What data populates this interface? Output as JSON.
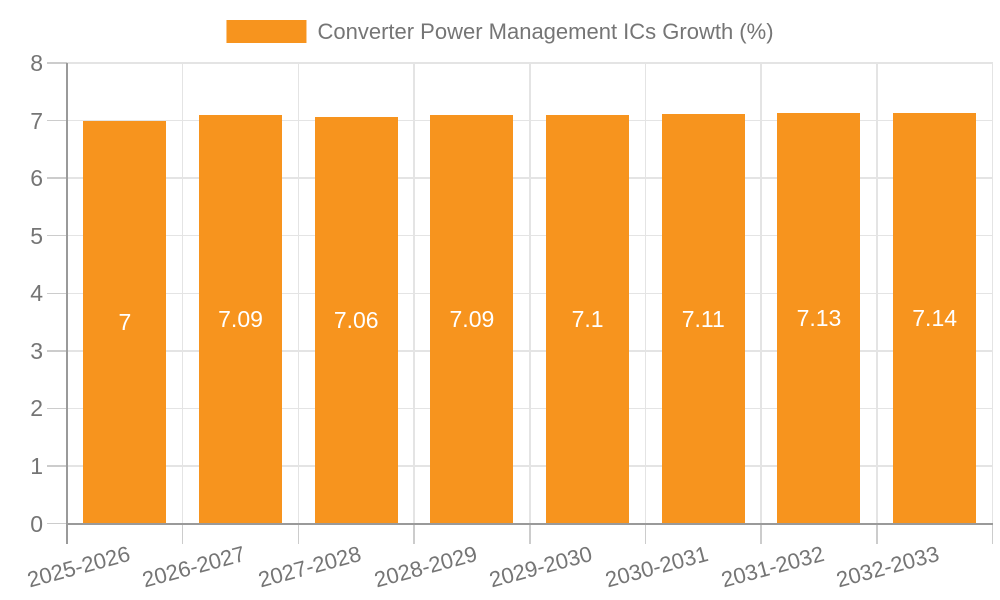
{
  "legend": {
    "label": "Converter Power Management ICs Growth (%)"
  },
  "chart_data": {
    "type": "bar",
    "title": "",
    "categories": [
      "2025-2026",
      "2026-2027",
      "2027-2028",
      "2028-2029",
      "2029-2030",
      "2030-2031",
      "2031-2032",
      "2032-2033"
    ],
    "values": [
      7,
      7.09,
      7.06,
      7.09,
      7.1,
      7.11,
      7.13,
      7.14
    ],
    "value_labels": [
      "7",
      "7.09",
      "7.06",
      "7.09",
      "7.1",
      "7.11",
      "7.13",
      "7.14"
    ],
    "series_name": "Converter Power Management ICs Growth (%)",
    "xlabel": "",
    "ylabel": "",
    "ylim": [
      0,
      8
    ],
    "ytick_step": 1,
    "yticks": [
      0,
      1,
      2,
      3,
      4,
      5,
      6,
      7,
      8
    ],
    "grid": true,
    "legend_position": "top",
    "value_label_position": "inside-middle"
  },
  "colors": {
    "bar": "#F7941E",
    "value_label": "#FFFFFF",
    "text": "#757575",
    "axis_line": "#9A9A9A",
    "grid_line": "#E4E4E4",
    "tick_line": "#CCCCCC",
    "background": "#FFFFFF"
  }
}
